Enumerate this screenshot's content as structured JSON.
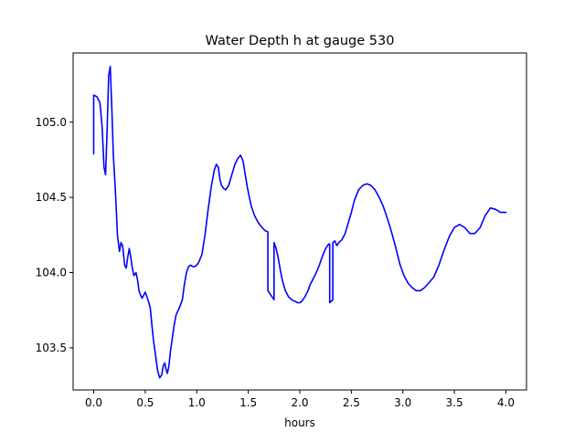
{
  "chart_data": {
    "type": "line",
    "title": "Water Depth h at gauge 530",
    "xlabel": "hours",
    "ylabel": "",
    "xlim": [
      -0.2,
      4.2
    ],
    "ylim": [
      103.22,
      105.46
    ],
    "x_ticks": [
      0.0,
      0.5,
      1.0,
      1.5,
      2.0,
      2.5,
      3.0,
      3.5,
      4.0
    ],
    "x_tick_labels": [
      "0.0",
      "0.5",
      "1.0",
      "1.5",
      "2.0",
      "2.5",
      "3.0",
      "3.5",
      "4.0"
    ],
    "y_ticks": [
      103.5,
      104.0,
      104.5,
      105.0
    ],
    "y_tick_labels": [
      "103.5",
      "104.0",
      "104.5",
      "105.0"
    ],
    "grid": false,
    "legend": false,
    "line_color": "#0000ff",
    "series": [
      {
        "x": [
          0.0,
          0.0,
          0.03,
          0.06,
          0.08,
          0.1,
          0.115,
          0.13,
          0.145,
          0.16,
          0.175,
          0.19,
          0.21,
          0.23,
          0.25,
          0.265,
          0.28,
          0.3,
          0.315,
          0.33,
          0.345,
          0.36,
          0.375,
          0.39,
          0.41,
          0.425,
          0.44,
          0.455,
          0.47,
          0.5,
          0.52,
          0.535,
          0.55,
          0.565,
          0.58,
          0.6,
          0.62,
          0.64,
          0.66,
          0.675,
          0.69,
          0.7,
          0.715,
          0.73,
          0.745,
          0.76,
          0.78,
          0.8,
          0.82,
          0.84,
          0.86,
          0.88,
          0.9,
          0.92,
          0.94,
          0.96,
          0.98,
          1.0,
          1.02,
          1.05,
          1.08,
          1.11,
          1.14,
          1.17,
          1.19,
          1.21,
          1.225,
          1.24,
          1.26,
          1.28,
          1.31,
          1.34,
          1.37,
          1.4,
          1.425,
          1.45,
          1.47,
          1.49,
          1.51,
          1.53,
          1.56,
          1.59,
          1.62,
          1.66,
          1.69,
          1.69,
          1.72,
          1.75,
          1.75,
          1.77,
          1.79,
          1.81,
          1.83,
          1.86,
          1.89,
          1.92,
          1.95,
          1.98,
          2.0,
          2.02,
          2.05,
          2.08,
          2.1,
          2.13,
          2.16,
          2.19,
          2.22,
          2.25,
          2.28,
          2.29,
          2.29,
          2.32,
          2.32,
          2.34,
          2.36,
          2.38,
          2.41,
          2.44,
          2.47,
          2.5,
          2.53,
          2.57,
          2.61,
          2.65,
          2.69,
          2.73,
          2.77,
          2.81,
          2.85,
          2.89,
          2.93,
          2.97,
          3.01,
          3.05,
          3.09,
          3.13,
          3.17,
          3.21,
          3.25,
          3.3,
          3.35,
          3.4,
          3.45,
          3.5,
          3.55,
          3.6,
          3.65,
          3.7,
          3.75,
          3.8,
          3.85,
          3.9,
          3.95,
          4.0
        ],
        "y": [
          104.79,
          105.18,
          105.17,
          105.13,
          104.98,
          104.7,
          104.65,
          104.95,
          105.31,
          105.37,
          105.1,
          104.78,
          104.55,
          104.25,
          104.14,
          104.2,
          104.18,
          104.05,
          104.03,
          104.1,
          104.16,
          104.1,
          104.03,
          103.98,
          104.0,
          103.95,
          103.88,
          103.85,
          103.83,
          103.87,
          103.83,
          103.8,
          103.76,
          103.65,
          103.55,
          103.45,
          103.35,
          103.3,
          103.32,
          103.38,
          103.4,
          103.36,
          103.33,
          103.38,
          103.48,
          103.55,
          103.65,
          103.72,
          103.75,
          103.78,
          103.82,
          103.92,
          104.0,
          104.04,
          104.05,
          104.04,
          104.04,
          104.05,
          104.07,
          104.12,
          104.25,
          104.42,
          104.57,
          104.68,
          104.72,
          104.7,
          104.62,
          104.58,
          104.56,
          104.55,
          104.58,
          104.65,
          104.72,
          104.76,
          104.78,
          104.74,
          104.65,
          104.57,
          104.5,
          104.44,
          104.38,
          104.34,
          104.31,
          104.28,
          104.27,
          103.88,
          103.85,
          103.82,
          104.2,
          104.16,
          104.1,
          104.02,
          103.95,
          103.88,
          103.84,
          103.82,
          103.81,
          103.8,
          103.8,
          103.81,
          103.84,
          103.88,
          103.92,
          103.96,
          104.0,
          104.05,
          104.11,
          104.16,
          104.19,
          104.19,
          103.8,
          103.82,
          104.2,
          104.21,
          104.18,
          104.2,
          104.22,
          104.26,
          104.33,
          104.4,
          104.48,
          104.55,
          104.58,
          104.59,
          104.58,
          104.55,
          104.5,
          104.44,
          104.36,
          104.27,
          104.17,
          104.06,
          103.98,
          103.93,
          103.9,
          103.88,
          103.88,
          103.9,
          103.93,
          103.97,
          104.05,
          104.15,
          104.24,
          104.3,
          104.32,
          104.3,
          104.26,
          104.26,
          104.3,
          104.38,
          104.43,
          104.42,
          104.4,
          104.4
        ]
      }
    ]
  }
}
